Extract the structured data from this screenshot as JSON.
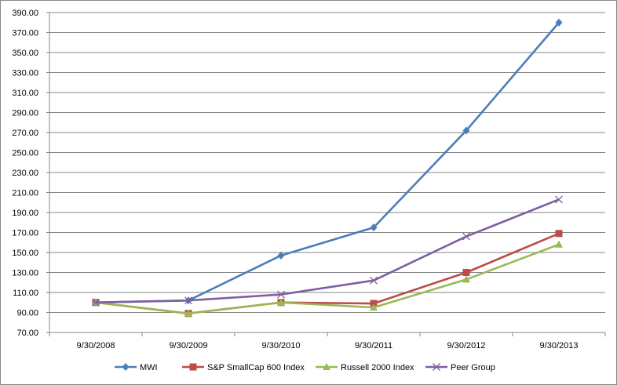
{
  "chart_data": {
    "type": "line",
    "title": "",
    "xlabel": "",
    "ylabel": "",
    "categories": [
      "9/30/2008",
      "9/30/2009",
      "9/30/2010",
      "9/30/2011",
      "9/30/2012",
      "9/30/2013"
    ],
    "ylim": [
      70,
      390
    ],
    "yticks": [
      "70.00",
      "90.00",
      "110.00",
      "130.00",
      "150.00",
      "170.00",
      "190.00",
      "210.00",
      "230.00",
      "250.00",
      "270.00",
      "290.00",
      "310.00",
      "330.00",
      "350.00",
      "370.00",
      "390.00"
    ],
    "grid": "horizontal",
    "legend_position": "bottom",
    "series": [
      {
        "name": "MWI",
        "color": "#4A7EBB",
        "marker": "diamond",
        "values": [
          100,
          102,
          147,
          175,
          272,
          380
        ]
      },
      {
        "name": "S&P SmallCap 600 Index",
        "color": "#BE4B48",
        "marker": "square",
        "values": [
          100,
          89,
          100,
          99,
          130,
          169
        ]
      },
      {
        "name": "Russell 2000 Index",
        "color": "#98B954",
        "marker": "triangle",
        "values": [
          100,
          89,
          100,
          95,
          123,
          158
        ]
      },
      {
        "name": "Peer Group",
        "color": "#7D60A0",
        "marker": "x",
        "values": [
          100,
          102,
          108,
          122,
          166,
          203
        ]
      }
    ]
  }
}
